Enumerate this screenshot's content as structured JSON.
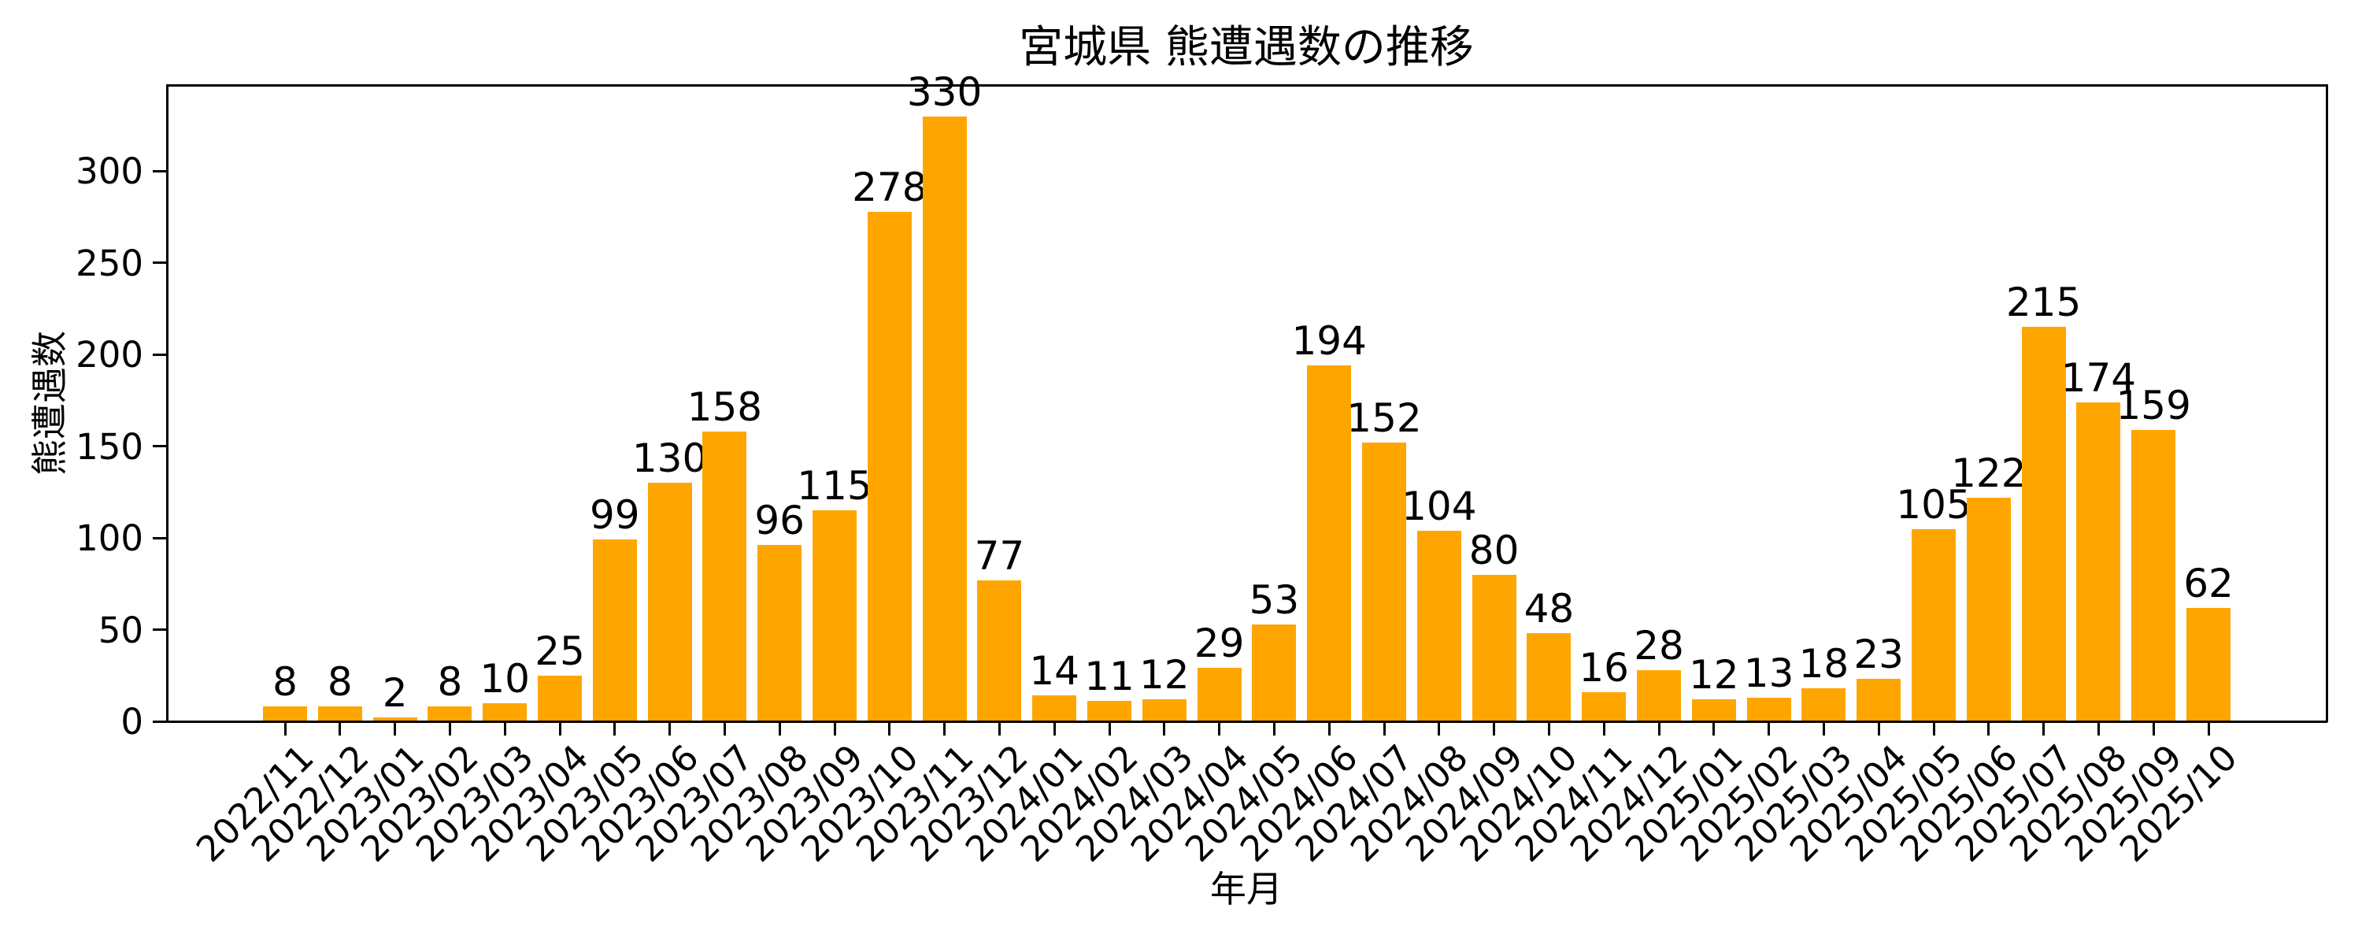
{
  "chart_data": {
    "type": "bar",
    "title": "宮城県 熊遭遇数の推移",
    "xlabel": "年月",
    "ylabel": "熊遭遇数",
    "categories": [
      "2022/11",
      "2022/12",
      "2023/01",
      "2023/02",
      "2023/03",
      "2023/04",
      "2023/05",
      "2023/06",
      "2023/07",
      "2023/08",
      "2023/09",
      "2023/10",
      "2023/11",
      "2023/12",
      "2024/01",
      "2024/02",
      "2024/03",
      "2024/04",
      "2024/05",
      "2024/06",
      "2024/07",
      "2024/08",
      "2024/09",
      "2024/10",
      "2024/11",
      "2024/12",
      "2025/01",
      "2025/02",
      "2025/03",
      "2025/04",
      "2025/05",
      "2025/06",
      "2025/07",
      "2025/08",
      "2025/09",
      "2025/10"
    ],
    "values": [
      8,
      8,
      2,
      8,
      10,
      25,
      99,
      130,
      158,
      96,
      115,
      278,
      330,
      77,
      14,
      11,
      12,
      29,
      53,
      194,
      152,
      104,
      80,
      48,
      16,
      28,
      12,
      13,
      18,
      23,
      105,
      122,
      215,
      174,
      159,
      62
    ],
    "yticks": [
      0,
      50,
      100,
      150,
      200,
      250,
      300
    ],
    "ylim": [
      0,
      347
    ],
    "grid": false,
    "legend": null,
    "bar_color": "#FFA500",
    "axis_color": "#000000",
    "text_color": "#000000",
    "background_color": "#FFFFFF",
    "x_tick_rotation_deg": 45
  }
}
